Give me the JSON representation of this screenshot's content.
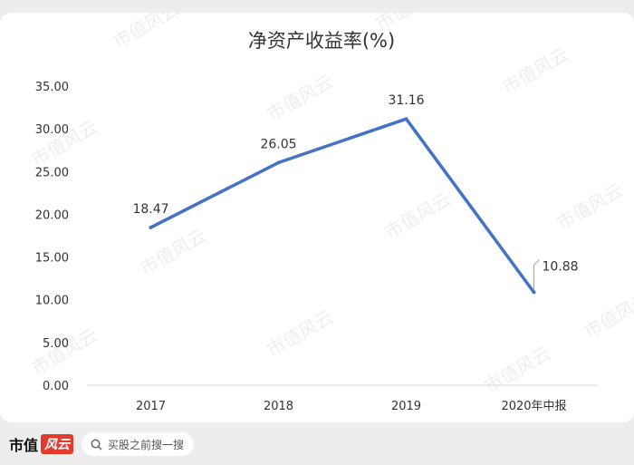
{
  "footer": {
    "brand_main": "市值",
    "brand_tail": "风云",
    "search_text": "买股之前搜一搜",
    "search_icon": "search-icon"
  },
  "watermark": "市值风云",
  "chart_data": {
    "type": "line",
    "title": "净资产收益率(%)",
    "categories": [
      "2017",
      "2018",
      "2019",
      "2020年中报"
    ],
    "series": [
      {
        "values": [
          18.47,
          26.05,
          31.16,
          10.88
        ],
        "color": "#4472c4"
      }
    ],
    "data_labels": [
      "18.47",
      "26.05",
      "31.16",
      "10.88"
    ],
    "y_ticks": [
      "0.00",
      "5.00",
      "10.00",
      "15.00",
      "20.00",
      "25.00",
      "30.00",
      "35.00"
    ],
    "ylim": [
      0,
      35
    ],
    "grid": false,
    "legend": "none"
  }
}
